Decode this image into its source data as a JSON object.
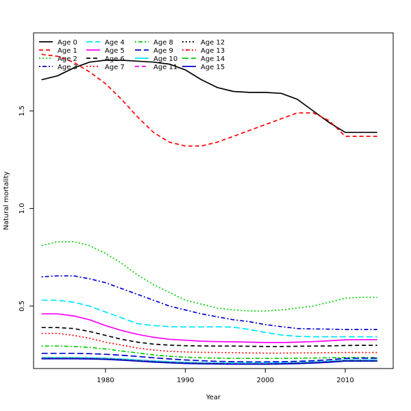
{
  "chart_data": {
    "type": "line",
    "title": "",
    "xlabel": "Year",
    "ylabel": "Natural mortality",
    "xlim": [
      1971,
      2016
    ],
    "ylim": [
      0.18,
      1.9
    ],
    "x_ticks": [
      1980,
      1990,
      2000,
      2010
    ],
    "y_ticks": [
      0.5,
      1.0,
      1.5
    ],
    "x_tick_labels": [
      "1980",
      "1990",
      "2000",
      "2010"
    ],
    "y_tick_labels": [
      "0.5",
      "1.0",
      "1.5"
    ],
    "legend_position": "top-left",
    "legend_columns": 4,
    "grid": false,
    "series": [
      {
        "name": "Age 0",
        "color": "#000000",
        "dash": "solid",
        "x": [
          1972,
          1974,
          1976,
          1978,
          1980,
          1982,
          1984,
          1986,
          1988,
          1990,
          1992,
          1994,
          1996,
          1998,
          2000,
          2002,
          2004,
          2006,
          2008,
          2010,
          2012,
          2014
        ],
        "y": [
          1.66,
          1.68,
          1.72,
          1.75,
          1.76,
          1.76,
          1.755,
          1.75,
          1.74,
          1.71,
          1.66,
          1.62,
          1.6,
          1.595,
          1.595,
          1.59,
          1.56,
          1.5,
          1.44,
          1.39,
          1.39,
          1.39
        ]
      },
      {
        "name": "Age 1",
        "color": "#ff0000",
        "dash": "dashed",
        "x": [
          1972,
          1974,
          1976,
          1978,
          1980,
          1982,
          1984,
          1986,
          1988,
          1990,
          1992,
          1994,
          1996,
          1998,
          2000,
          2002,
          2004,
          2006,
          2008,
          2010,
          2012,
          2014
        ],
        "y": [
          1.79,
          1.78,
          1.75,
          1.7,
          1.64,
          1.56,
          1.47,
          1.39,
          1.34,
          1.32,
          1.32,
          1.34,
          1.37,
          1.4,
          1.43,
          1.46,
          1.49,
          1.49,
          1.45,
          1.37,
          1.37,
          1.37
        ]
      },
      {
        "name": "Age 2",
        "color": "#00cc00",
        "dash": "dotted",
        "x": [
          1972,
          1974,
          1976,
          1978,
          1980,
          1982,
          1984,
          1986,
          1988,
          1990,
          1992,
          1994,
          1996,
          1998,
          2000,
          2002,
          2004,
          2006,
          2008,
          2010,
          2012,
          2014
        ],
        "y": [
          0.81,
          0.83,
          0.83,
          0.81,
          0.77,
          0.72,
          0.66,
          0.61,
          0.57,
          0.53,
          0.51,
          0.49,
          0.48,
          0.475,
          0.475,
          0.48,
          0.49,
          0.5,
          0.52,
          0.54,
          0.545,
          0.545
        ]
      },
      {
        "name": "Age 3",
        "color": "#0000cc",
        "dash": "dotdash",
        "x": [
          1972,
          1974,
          1976,
          1978,
          1980,
          1982,
          1984,
          1986,
          1988,
          1990,
          1992,
          1994,
          1996,
          1998,
          2000,
          2002,
          2004,
          2006,
          2008,
          2010,
          2012,
          2014
        ],
        "y": [
          0.65,
          0.655,
          0.655,
          0.64,
          0.62,
          0.59,
          0.56,
          0.53,
          0.5,
          0.48,
          0.46,
          0.445,
          0.43,
          0.42,
          0.405,
          0.395,
          0.385,
          0.383,
          0.382,
          0.38,
          0.38,
          0.38
        ]
      },
      {
        "name": "Age 4",
        "color": "#00e5ff",
        "dash": "longdash",
        "x": [
          1972,
          1974,
          1976,
          1978,
          1980,
          1982,
          1984,
          1986,
          1988,
          1990,
          1992,
          1994,
          1996,
          1998,
          2000,
          2002,
          2004,
          2006,
          2008,
          2010,
          2012,
          2014
        ],
        "y": [
          0.53,
          0.53,
          0.52,
          0.5,
          0.47,
          0.44,
          0.41,
          0.4,
          0.395,
          0.393,
          0.393,
          0.394,
          0.392,
          0.38,
          0.365,
          0.352,
          0.345,
          0.343,
          0.343,
          0.343,
          0.343,
          0.343
        ]
      },
      {
        "name": "Age 5",
        "color": "#ff00ff",
        "dash": "solid",
        "x": [
          1972,
          1974,
          1976,
          1978,
          1980,
          1982,
          1984,
          1986,
          1988,
          1990,
          1992,
          1994,
          1996,
          1998,
          2000,
          2002,
          2004,
          2006,
          2008,
          2010,
          2012,
          2014
        ],
        "y": [
          0.46,
          0.46,
          0.45,
          0.43,
          0.4,
          0.375,
          0.355,
          0.34,
          0.33,
          0.325,
          0.32,
          0.318,
          0.317,
          0.315,
          0.313,
          0.313,
          0.315,
          0.318,
          0.322,
          0.327,
          0.328,
          0.328
        ]
      },
      {
        "name": "Age 6",
        "color": "#000000",
        "dash": "dashed",
        "x": [
          1972,
          1974,
          1976,
          1978,
          1980,
          1982,
          1984,
          1986,
          1988,
          1990,
          1992,
          1994,
          1996,
          1998,
          2000,
          2002,
          2004,
          2006,
          2008,
          2010,
          2012,
          2014
        ],
        "y": [
          0.39,
          0.39,
          0.385,
          0.37,
          0.35,
          0.33,
          0.315,
          0.305,
          0.3,
          0.297,
          0.296,
          0.295,
          0.295,
          0.294,
          0.293,
          0.293,
          0.294,
          0.295,
          0.296,
          0.298,
          0.299,
          0.299
        ]
      },
      {
        "name": "Age 7",
        "color": "#ff0000",
        "dash": "dotted",
        "x": [
          1972,
          1974,
          1976,
          1978,
          1980,
          1982,
          1984,
          1986,
          1988,
          1990,
          1992,
          1994,
          1996,
          1998,
          2000,
          2002,
          2004,
          2006,
          2008,
          2010,
          2012,
          2014
        ],
        "y": [
          0.36,
          0.36,
          0.35,
          0.335,
          0.315,
          0.3,
          0.285,
          0.275,
          0.268,
          0.265,
          0.263,
          0.262,
          0.261,
          0.26,
          0.259,
          0.259,
          0.26,
          0.26,
          0.261,
          0.262,
          0.262,
          0.262
        ]
      },
      {
        "name": "Age 8",
        "color": "#00cc00",
        "dash": "dotdash",
        "x": [
          1972,
          1974,
          1976,
          1978,
          1980,
          1982,
          1984,
          1986,
          1988,
          1990,
          1992,
          1994,
          1996,
          1998,
          2000,
          2002,
          2004,
          2006,
          2008,
          2010,
          2012,
          2014
        ],
        "y": [
          0.295,
          0.295,
          0.293,
          0.288,
          0.28,
          0.27,
          0.26,
          0.25,
          0.243,
          0.238,
          0.235,
          0.233,
          0.232,
          0.232,
          0.232,
          0.232,
          0.233,
          0.234,
          0.235,
          0.236,
          0.236,
          0.236
        ]
      },
      {
        "name": "Age 9",
        "color": "#0000cc",
        "dash": "longdash",
        "x": [
          1972,
          1974,
          1976,
          1978,
          1980,
          1982,
          1984,
          1986,
          1988,
          1990,
          1992,
          1994,
          1996,
          1998,
          2000,
          2002,
          2004,
          2006,
          2008,
          2010,
          2012,
          2014
        ],
        "y": [
          0.258,
          0.258,
          0.258,
          0.256,
          0.253,
          0.248,
          0.242,
          0.235,
          0.229,
          0.224,
          0.22,
          0.217,
          0.215,
          0.214,
          0.214,
          0.215,
          0.217,
          0.22,
          0.225,
          0.232,
          0.233,
          0.233
        ]
      },
      {
        "name": "Age 10",
        "color": "#00e5ff",
        "dash": "solid",
        "x": [
          1972,
          1974,
          1976,
          1978,
          1980,
          1982,
          1984,
          1986,
          1988,
          1990,
          1992,
          1994,
          1996,
          1998,
          2000,
          2002,
          2004,
          2006,
          2008,
          2010,
          2012,
          2014
        ],
        "y": [
          0.236,
          0.236,
          0.236,
          0.235,
          0.233,
          0.229,
          0.224,
          0.219,
          0.215,
          0.212,
          0.21,
          0.209,
          0.208,
          0.208,
          0.208,
          0.209,
          0.211,
          0.214,
          0.218,
          0.224,
          0.224,
          0.224
        ]
      },
      {
        "name": "Age 11",
        "color": "#ff00ff",
        "dash": "dashed",
        "x": [
          1972,
          1974,
          1976,
          1978,
          1980,
          1982,
          1984,
          1986,
          1988,
          1990,
          1992,
          1994,
          1996,
          1998,
          2000,
          2002,
          2004,
          2006,
          2008,
          2010,
          2012,
          2014
        ],
        "y": [
          0.233,
          0.233,
          0.233,
          0.232,
          0.23,
          0.226,
          0.221,
          0.216,
          0.212,
          0.209,
          0.207,
          0.206,
          0.205,
          0.205,
          0.205,
          0.206,
          0.208,
          0.211,
          0.215,
          0.221,
          0.221,
          0.221
        ]
      },
      {
        "name": "Age 12",
        "color": "#000000",
        "dash": "dotted",
        "x": [
          1972,
          1974,
          1976,
          1978,
          1980,
          1982,
          1984,
          1986,
          1988,
          1990,
          1992,
          1994,
          1996,
          1998,
          2000,
          2002,
          2004,
          2006,
          2008,
          2010,
          2012,
          2014
        ],
        "y": [
          0.232,
          0.232,
          0.232,
          0.231,
          0.229,
          0.225,
          0.22,
          0.215,
          0.211,
          0.208,
          0.206,
          0.205,
          0.204,
          0.204,
          0.204,
          0.205,
          0.207,
          0.21,
          0.214,
          0.22,
          0.22,
          0.22
        ]
      },
      {
        "name": "Age 13",
        "color": "#ff0000",
        "dash": "dotdash",
        "x": [
          1972,
          1974,
          1976,
          1978,
          1980,
          1982,
          1984,
          1986,
          1988,
          1990,
          1992,
          1994,
          1996,
          1998,
          2000,
          2002,
          2004,
          2006,
          2008,
          2010,
          2012,
          2014
        ],
        "y": [
          0.231,
          0.231,
          0.231,
          0.23,
          0.228,
          0.224,
          0.219,
          0.214,
          0.21,
          0.207,
          0.205,
          0.204,
          0.203,
          0.203,
          0.203,
          0.204,
          0.206,
          0.209,
          0.213,
          0.219,
          0.219,
          0.219
        ]
      },
      {
        "name": "Age 14",
        "color": "#00cc00",
        "dash": "longdash",
        "x": [
          1972,
          1974,
          1976,
          1978,
          1980,
          1982,
          1984,
          1986,
          1988,
          1990,
          1992,
          1994,
          1996,
          1998,
          2000,
          2002,
          2004,
          2006,
          2008,
          2010,
          2012,
          2014
        ],
        "y": [
          0.231,
          0.231,
          0.231,
          0.23,
          0.228,
          0.224,
          0.219,
          0.214,
          0.21,
          0.207,
          0.205,
          0.204,
          0.203,
          0.203,
          0.203,
          0.204,
          0.206,
          0.209,
          0.213,
          0.219,
          0.219,
          0.219
        ]
      },
      {
        "name": "Age 15",
        "color": "#0000cc",
        "dash": "solid",
        "x": [
          1972,
          1974,
          1976,
          1978,
          1980,
          1982,
          1984,
          1986,
          1988,
          1990,
          1992,
          1994,
          1996,
          1998,
          2000,
          2002,
          2004,
          2006,
          2008,
          2010,
          2012,
          2014
        ],
        "y": [
          0.23,
          0.23,
          0.23,
          0.229,
          0.227,
          0.223,
          0.218,
          0.213,
          0.209,
          0.206,
          0.204,
          0.203,
          0.202,
          0.202,
          0.202,
          0.203,
          0.205,
          0.208,
          0.212,
          0.218,
          0.218,
          0.218
        ]
      }
    ]
  }
}
